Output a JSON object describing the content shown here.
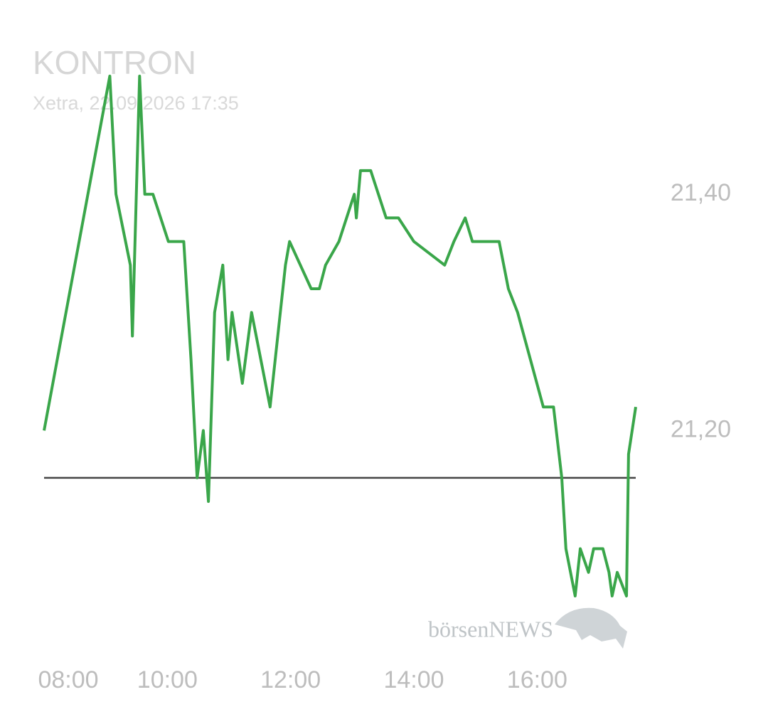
{
  "chart_data": {
    "type": "line",
    "title": "KONTRON",
    "subtitle": "Xetra, 22.09.2026 17:35",
    "watermark": "börsenNEWS",
    "x": [
      "08:00",
      "09:04",
      "09:10",
      "09:24",
      "09:26",
      "09:33",
      "09:38",
      "09:46",
      "10:01",
      "10:16",
      "10:23",
      "10:29",
      "10:35",
      "10:40",
      "10:46",
      "10:54",
      "10:59",
      "11:03",
      "11:13",
      "11:22",
      "11:40",
      "11:55",
      "11:59",
      "12:20",
      "12:28",
      "12:34",
      "12:47",
      "13:02",
      "13:04",
      "13:08",
      "13:18",
      "13:33",
      "13:45",
      "14:00",
      "14:30",
      "14:39",
      "14:50",
      "14:57",
      "15:23",
      "15:32",
      "15:41",
      "16:06",
      "16:16",
      "16:24",
      "16:28",
      "16:37",
      "16:42",
      "16:50",
      "16:55",
      "17:04",
      "17:10",
      "17:13",
      "17:18",
      "17:27",
      "17:29",
      "17:36"
    ],
    "series": [
      {
        "name": "KONTRON",
        "color": "#3aa64a",
        "values": [
          21.2,
          21.5,
          21.4,
          21.34,
          21.28,
          21.5,
          21.4,
          21.4,
          21.36,
          21.36,
          21.26,
          21.16,
          21.2,
          21.14,
          21.3,
          21.34,
          21.26,
          21.3,
          21.24,
          21.3,
          21.22,
          21.34,
          21.36,
          21.32,
          21.32,
          21.34,
          21.36,
          21.4,
          21.38,
          21.42,
          21.42,
          21.38,
          21.38,
          21.36,
          21.34,
          21.36,
          21.38,
          21.36,
          21.36,
          21.32,
          21.3,
          21.22,
          21.22,
          21.16,
          21.1,
          21.06,
          21.1,
          21.08,
          21.1,
          21.1,
          21.08,
          21.06,
          21.08,
          21.06,
          21.18,
          21.22
        ]
      }
    ],
    "reference_line": {
      "value": 21.16,
      "color": "#444444"
    },
    "xlim": [
      "08:00",
      "17:36"
    ],
    "xticks": [
      "08:00",
      "10:00",
      "12:00",
      "14:00",
      "16:00"
    ],
    "ylim": [
      21.06,
      21.5
    ],
    "yticks": [
      {
        "value": 21.4,
        "label": "21,40"
      },
      {
        "value": 21.2,
        "label": "21,20"
      }
    ]
  }
}
